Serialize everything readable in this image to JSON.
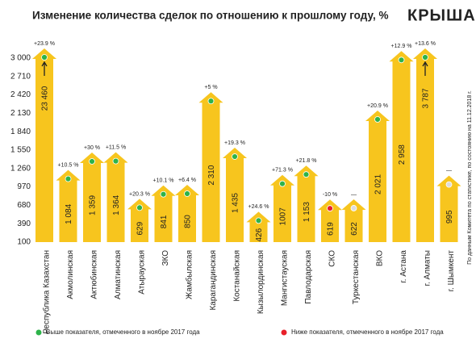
{
  "chart_data": {
    "type": "bar",
    "title": "Изменение количества сделок по отношению к прошлому году, %",
    "logo": "КРЫША",
    "note": "По данным Комитета по статистике, по состоянию на 11.12.2018 г.",
    "categories": [
      "Республика Казахстан",
      "Акмолинская",
      "Актюбинская",
      "Алматинская",
      "Атырауская",
      "ЗКО",
      "Жамбылская",
      "Карагандинская",
      "Костанайская",
      "Кызылординская",
      "Мангистауская",
      "Павлодарская",
      "СКО",
      "Туркестанская",
      "ВКО",
      "г. Астана",
      "г. Алматы",
      "г. Шымкент"
    ],
    "values": [
      23460,
      1084,
      1359,
      1364,
      629,
      841,
      850,
      2310,
      1435,
      426,
      1007,
      1153,
      619,
      622,
      2021,
      2958,
      3787,
      995
    ],
    "value_labels": [
      "23 460",
      "1 084",
      "1 359",
      "1 364",
      "629",
      "841",
      "850",
      "2 310",
      "1 435",
      "426",
      "1007",
      "1 153",
      "619",
      "622",
      "2 021",
      "2 958",
      "3 787",
      "995"
    ],
    "changes": [
      23.9,
      10.5,
      30,
      11.5,
      20.3,
      10.1,
      6.4,
      5,
      19.3,
      24.6,
      71.3,
      21.8,
      -10,
      null,
      20.9,
      12.9,
      13.6,
      null
    ],
    "change_labels": [
      "+23.9 %",
      "+10.5 %",
      "+30 %",
      "+11.5 %",
      "+20.3 %",
      "+10.1 %",
      "+6.4 %",
      "+5 %",
      "+19.3 %",
      "+24.6 %",
      "+71.3 %",
      "+21.8 %",
      "-10 %",
      "—",
      "+20.9 %",
      "+12.9 %",
      "+13.6 %",
      "—"
    ],
    "dot_colors": [
      "#2db34a",
      "#2db34a",
      "#2db34a",
      "#2db34a",
      "#2db34a",
      "#2db34a",
      "#2db34a",
      "#2db34a",
      "#2db34a",
      "#2db34a",
      "#2db34a",
      "#2db34a",
      "#e8202a",
      "#dddddd",
      "#2db34a",
      "#2db34a",
      "#2db34a",
      "#dddddd"
    ],
    "color": "#f7c51e",
    "ylim": [
      100,
      3000
    ],
    "yticks": [
      100,
      390,
      680,
      970,
      {
        "value": 1260,
        "label": "1 260"
      },
      {
        "value": 1550,
        "label": "1 550"
      },
      {
        "value": 1840,
        "label": "1 840"
      },
      {
        "value": 2130,
        "label": "2 130"
      },
      {
        "value": 2420,
        "label": "2 420"
      },
      {
        "value": 2710,
        "label": "2 710"
      },
      {
        "value": 3000,
        "label": "3 000"
      }
    ],
    "grid": false,
    "legend": [
      {
        "name": "Выше показателя, отмеченного в ноябре 2017 года",
        "color": "#2db34a"
      },
      {
        "name": "Ниже показателя, отмеченного в ноябре 2017 года",
        "color": "#e8202a"
      }
    ]
  }
}
